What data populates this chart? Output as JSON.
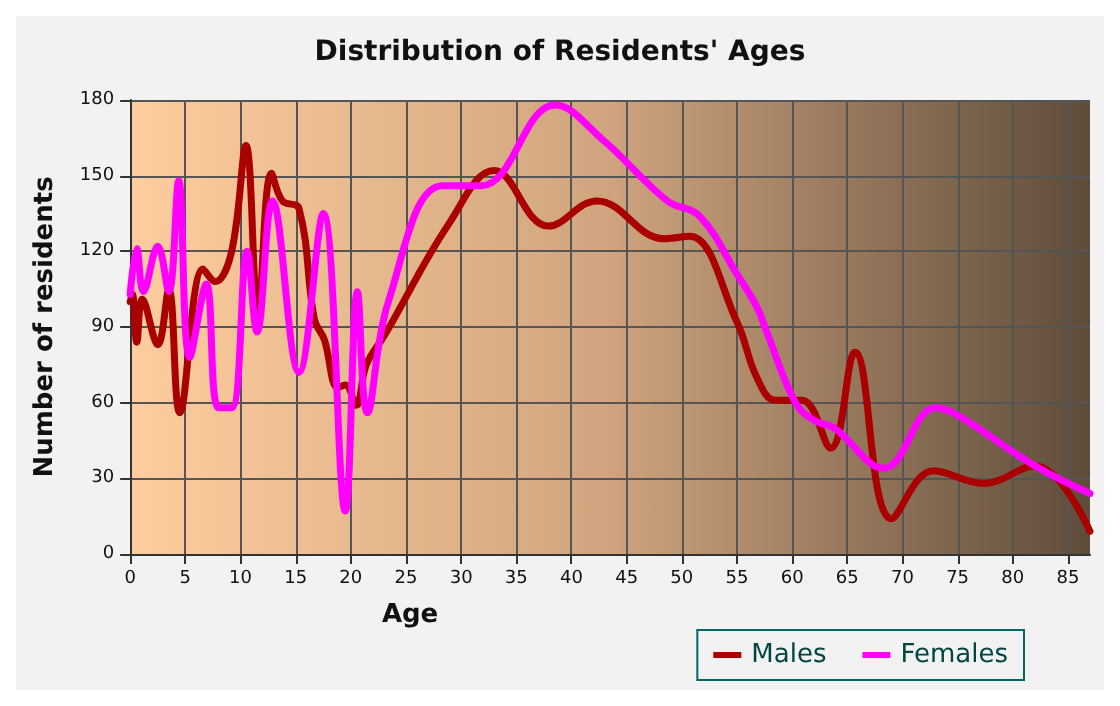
{
  "chart_data": {
    "type": "line",
    "title": "Distribution of Residents' Ages",
    "xlabel": "Age",
    "ylabel": "Number of residents",
    "xlim": [
      0,
      87
    ],
    "xticks": [
      0,
      5,
      10,
      15,
      20,
      25,
      30,
      35,
      40,
      45,
      50,
      55,
      60,
      65,
      70,
      75,
      80,
      85
    ],
    "ylim": [
      0,
      180
    ],
    "yticks": [
      0,
      30,
      60,
      90,
      120,
      150,
      180
    ],
    "grid": true,
    "legend": "bottom right",
    "marker": "none",
    "line_style": "solid",
    "series": [
      {
        "name": "Males",
        "color": "#aa0000",
        "x": [
          0,
          0.2,
          0.6,
          1.1,
          2.5,
          3.5,
          4.5,
          6.6,
          7.7,
          9.2,
          10.5,
          11.6,
          12.8,
          13.8,
          15.3,
          16.7,
          17.6,
          18.8,
          19.5,
          20.5,
          21.4,
          23.1,
          28.9,
          33,
          37.9,
          42.3,
          48.4,
          50.7,
          55,
          56.8,
          58.5,
          60.9,
          63.5,
          65.7,
          69,
          72.8,
          77.4,
          82,
          87
        ],
        "values": [
          100,
          103,
          84,
          101,
          83,
          105,
          56,
          113,
          108,
          120,
          162,
          96,
          151,
          140,
          137,
          93,
          85,
          66,
          67,
          59,
          75,
          87,
          131,
          152,
          130,
          140,
          125,
          126,
          92,
          70,
          61,
          61,
          42,
          80,
          14,
          33,
          28,
          35,
          9
        ]
      },
      {
        "name": "Females",
        "color": "#ff00ff",
        "x": [
          0,
          0.6,
          1.2,
          2.5,
          3.5,
          4.4,
          5.4,
          6.9,
          8,
          9.2,
          10.6,
          11.5,
          12.9,
          15.3,
          17.5,
          19.5,
          20.6,
          21.5,
          23.4,
          28.3,
          31.8,
          38.5,
          42.9,
          48.7,
          51.6,
          55,
          56.8,
          57.7,
          60.3,
          62,
          63.8,
          68.3,
          73,
          75,
          82,
          87
        ],
        "values": [
          103,
          121,
          104,
          122,
          104,
          148,
          78,
          107,
          58,
          58,
          120,
          88,
          140,
          72,
          135,
          17,
          104,
          56,
          100,
          146,
          146,
          178,
          164,
          140,
          134,
          111,
          98,
          88,
          60,
          53,
          50,
          34,
          58,
          55,
          35,
          24
        ]
      }
    ]
  }
}
